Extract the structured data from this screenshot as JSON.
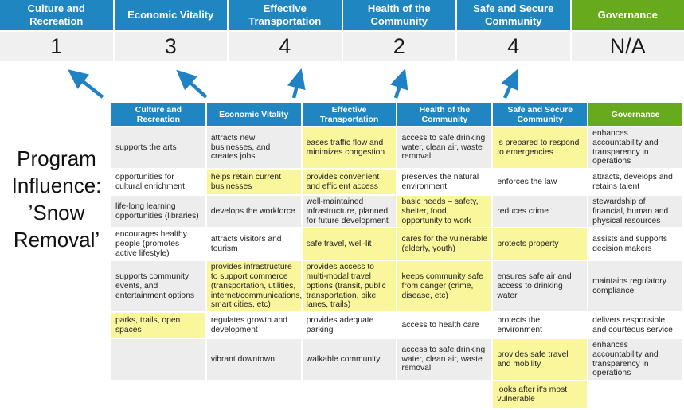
{
  "palette": {
    "header_blue": "#1F86C2",
    "header_green": "#67AA1D",
    "highlight_yellow": "#FAF69C",
    "score_bg_gray": "#F0F0F0",
    "row_band_gray": "#EDEDED",
    "arrow_blue": "#1F82C5"
  },
  "program": {
    "label": "Program Influence: ’Snow Removal’"
  },
  "summary": {
    "columns": [
      {
        "label": "Culture and Recreation",
        "score": "1",
        "accent": "blue"
      },
      {
        "label": "Economic Vitality",
        "score": "3",
        "accent": "blue"
      },
      {
        "label": "Effective Transportation",
        "score": "4",
        "accent": "blue"
      },
      {
        "label": "Health of the Community",
        "score": "2",
        "accent": "blue"
      },
      {
        "label": "Safe and Secure Community",
        "score": "4",
        "accent": "blue"
      },
      {
        "label": "Governance",
        "score": "N/A",
        "accent": "green"
      }
    ]
  },
  "matrix": {
    "headers": [
      {
        "label": "Culture and Recreation",
        "accent": "blue"
      },
      {
        "label": "Economic Vitality",
        "accent": "blue"
      },
      {
        "label": "Effective Transportation",
        "accent": "blue"
      },
      {
        "label": "Health of the Community",
        "accent": "blue"
      },
      {
        "label": "Safe and Secure Community",
        "accent": "blue"
      },
      {
        "label": "Governance",
        "accent": "green"
      }
    ],
    "rows": [
      [
        {
          "t": "supports the arts",
          "h": false
        },
        {
          "t": "attracts new businesses, and creates jobs",
          "h": false
        },
        {
          "t": "eases traffic flow and minimizes congestion",
          "h": true
        },
        {
          "t": "access to safe drinking water, clean air, waste removal",
          "h": false
        },
        {
          "t": "is prepared to respond to emergencies",
          "h": true
        },
        {
          "t": "enhances accountability and transparency in operations",
          "h": false
        }
      ],
      [
        {
          "t": "opportunities for cultural enrichment",
          "h": false
        },
        {
          "t": "helps retain current businesses",
          "h": true
        },
        {
          "t": "provides convenient and efficient access",
          "h": true
        },
        {
          "t": "preserves the natural environment",
          "h": false
        },
        {
          "t": "enforces the law",
          "h": false
        },
        {
          "t": "attracts, develops and retains talent",
          "h": false
        }
      ],
      [
        {
          "t": "life-long learning opportunities (libraries)",
          "h": false
        },
        {
          "t": "develops the workforce",
          "h": false
        },
        {
          "t": "well-maintained infrastructure, planned for future development",
          "h": false
        },
        {
          "t": "basic needs – safety, shelter, food, opportunity to work",
          "h": true
        },
        {
          "t": "reduces crime",
          "h": false
        },
        {
          "t": "stewardship of financial, human and physical resources",
          "h": false
        }
      ],
      [
        {
          "t": "encourages healthy people (promotes active lifestyle)",
          "h": false
        },
        {
          "t": "attracts visitors and tourism",
          "h": false
        },
        {
          "t": "safe travel, well-lit",
          "h": true
        },
        {
          "t": "cares for the vulnerable (elderly, youth)",
          "h": true
        },
        {
          "t": "protects property",
          "h": true
        },
        {
          "t": "assists and supports decision makers",
          "h": false
        }
      ],
      [
        {
          "t": "supports community events, and entertainment options",
          "h": false
        },
        {
          "t": "provides infrastructure to support commerce (transportation, utilities, internet/communications, smart cities, etc)",
          "h": true
        },
        {
          "t": "provides access to multi-modal travel options (transit, public transportation, bike lanes, trails)",
          "h": true
        },
        {
          "t": "keeps community safe from danger (crime, disease, etc)",
          "h": true
        },
        {
          "t": "ensures safe air and access to drinking water",
          "h": false
        },
        {
          "t": "maintains regulatory compliance",
          "h": false
        }
      ],
      [
        {
          "t": "parks, trails, open spaces",
          "h": true
        },
        {
          "t": "regulates growth and development",
          "h": false
        },
        {
          "t": "provides adequate parking",
          "h": false
        },
        {
          "t": "access to health care",
          "h": false
        },
        {
          "t": "protects the environment",
          "h": false
        },
        {
          "t": "delivers responsible and courteous service",
          "h": false
        }
      ],
      [
        {
          "t": "",
          "h": false
        },
        {
          "t": "vibrant downtown",
          "h": false
        },
        {
          "t": "walkable community",
          "h": false
        },
        {
          "t": "access to safe drinking water, clean air, waste removal",
          "h": false
        },
        {
          "t": "provides safe travel and mobility",
          "h": true
        },
        {
          "t": "enhances accountability and transparency in operations",
          "h": false
        }
      ],
      [
        {
          "t": "",
          "h": false
        },
        {
          "t": "",
          "h": false
        },
        {
          "t": "",
          "h": false
        },
        {
          "t": "",
          "h": false
        },
        {
          "t": "looks after it's most vulnerable",
          "h": true
        },
        {
          "t": "",
          "h": false
        }
      ]
    ]
  }
}
